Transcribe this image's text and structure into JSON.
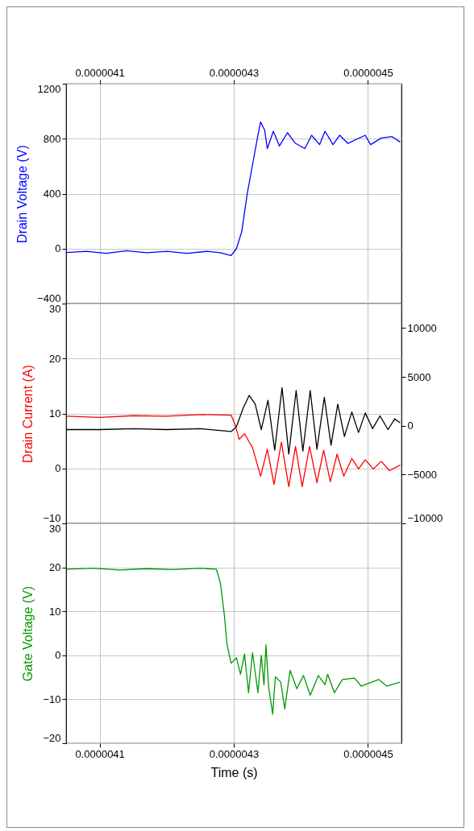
{
  "chart_data": [
    {
      "type": "line",
      "ylabel": "Drain Voltage (V)",
      "xlim": [
        4.05e-06,
        4.55e-06
      ],
      "xticks": [
        {
          "value": 4.1e-06,
          "label": null
        },
        {
          "value": 4.3e-06,
          "label": null
        },
        {
          "value": 4.5e-06,
          "label": null
        }
      ],
      "tick_labels": "y",
      "x2lim": [
        4.05e-06,
        4.55e-06
      ],
      "x2ticks": [
        {
          "value": 4.1e-06,
          "label": "0.0000041"
        },
        {
          "value": 4.3e-06,
          "label": "0.0000043"
        },
        {
          "value": 4.5e-06,
          "label": "0.0000045"
        }
      ],
      "ylim": [
        -400,
        1200
      ],
      "yticks": [
        -400,
        0,
        400,
        800,
        1200
      ],
      "grid": true,
      "series": [
        {
          "color": "#0000ff",
          "x": [
            4.0508e-06,
            4.08e-06,
            4.11e-06,
            4.14e-06,
            4.17e-06,
            4.2e-06,
            4.23e-06,
            4.26e-06,
            4.28e-06,
            4.296e-06,
            4.304e-06,
            4.312e-06,
            4.32e-06,
            4.328e-06,
            4.336e-06,
            4.34e-06,
            4.346e-06,
            4.35e-06,
            4.359e-06,
            4.368e-06,
            4.38e-06,
            4.392e-06,
            4.406e-06,
            4.416e-06,
            4.428e-06,
            4.436e-06,
            4.448e-06,
            4.458e-06,
            4.47e-06,
            4.496e-06,
            4.504e-06,
            4.52e-06,
            4.536e-06,
            4.548e-06
          ],
          "values": [
            -29,
            -20,
            -35,
            -15,
            -30,
            -20,
            -35,
            -20,
            -30,
            -50,
            0,
            126,
            398,
            611,
            825,
            922,
            863,
            728,
            854,
            747,
            844,
            766,
            728,
            825,
            757,
            854,
            757,
            825,
            766,
            825,
            757,
            805,
            815,
            776
          ]
        }
      ]
    },
    {
      "type": "line",
      "ylabel": "Drain Current (A)",
      "xlim": [
        4.05e-06,
        4.55e-06
      ],
      "xticks": [
        {
          "value": 4.1e-06,
          "label": null
        },
        {
          "value": 4.3e-06,
          "label": null
        },
        {
          "value": 4.5e-06,
          "label": null
        }
      ],
      "tick_labels": "y",
      "ylim": [
        -10,
        30
      ],
      "yticks": [
        -10,
        0,
        10,
        20,
        30
      ],
      "y2lim": [
        -10000,
        12500
      ],
      "y2ticks": [
        -10000,
        -5000,
        0,
        5000,
        10000
      ],
      "grid": true,
      "series": [
        {
          "color": "#ff0000",
          "x": [
            4.0508e-06,
            4.1e-06,
            4.15e-06,
            4.2e-06,
            4.25e-06,
            4.296e-06,
            4.302e-06,
            4.308e-06,
            4.316e-06,
            4.328e-06,
            4.34e-06,
            4.35e-06,
            4.36e-06,
            4.371e-06,
            4.382e-06,
            4.392e-06,
            4.402e-06,
            4.413e-06,
            4.424e-06,
            4.434e-06,
            4.444e-06,
            4.454e-06,
            4.464e-06,
            4.476e-06,
            4.486e-06,
            4.496e-06,
            4.508e-06,
            4.52e-06,
            4.532e-06,
            4.548e-06
          ],
          "values": [
            9.5,
            9.3,
            9.6,
            9.5,
            9.8,
            9.7,
            8.0,
            5.3,
            6.3,
            3.8,
            -1.4,
            3.5,
            -2.9,
            4.8,
            -3.3,
            4.0,
            -3.3,
            4.0,
            -2.6,
            3.3,
            -2.4,
            2.6,
            -1.4,
            1.8,
            -0.1,
            1.6,
            -0.1,
            1.3,
            -0.4,
            0.6
          ]
        },
        {
          "color": "#000000",
          "axis": "y2",
          "x": [
            4.0508e-06,
            4.1e-06,
            4.15e-06,
            4.2e-06,
            4.25e-06,
            4.296e-06,
            4.304e-06,
            4.314e-06,
            4.323e-06,
            4.332e-06,
            4.341e-06,
            4.351e-06,
            4.361e-06,
            4.372e-06,
            4.382e-06,
            4.393e-06,
            4.403e-06,
            4.414e-06,
            4.424e-06,
            4.435e-06,
            4.445e-06,
            4.455e-06,
            4.465e-06,
            4.476e-06,
            4.486e-06,
            4.496e-06,
            4.507e-06,
            4.518e-06,
            4.53e-06,
            4.54e-06,
            4.548e-06
          ],
          "values": [
            -400,
            -400,
            -300,
            -400,
            -300,
            -600,
            -100,
            1800,
            3100,
            2200,
            -400,
            2600,
            -2500,
            3900,
            -2900,
            3600,
            -2600,
            3600,
            -2400,
            2900,
            -2000,
            2200,
            -1100,
            1400,
            -700,
            1300,
            -300,
            1000,
            -400,
            700,
            300
          ]
        }
      ]
    },
    {
      "type": "line",
      "ylabel": "Gate Voltage (V)",
      "xlabel": "Time (s)",
      "xlim": [
        4.05e-06,
        4.55e-06
      ],
      "xticks": [
        {
          "value": 4.1e-06,
          "label": "0.0000041"
        },
        {
          "value": 4.3e-06,
          "label": "0.0000043"
        },
        {
          "value": 4.5e-06,
          "label": "0.0000045"
        }
      ],
      "ylim": [
        -20,
        30
      ],
      "yticks": [
        -20,
        -10,
        0,
        10,
        20,
        30
      ],
      "grid": true,
      "series": [
        {
          "color": "#009900",
          "x": [
            4.0508e-06,
            4.09e-06,
            4.13e-06,
            4.17e-06,
            4.21e-06,
            4.25e-06,
            4.274e-06,
            4.28e-06,
            4.286e-06,
            4.29e-06,
            4.296e-06,
            4.304e-06,
            4.31e-06,
            4.316e-06,
            4.322e-06,
            4.328e-06,
            4.336e-06,
            4.341e-06,
            4.345e-06,
            4.348e-06,
            4.352e-06,
            4.358e-06,
            4.362e-06,
            4.37e-06,
            4.376e-06,
            4.384e-06,
            4.394e-06,
            4.404e-06,
            4.414e-06,
            4.426e-06,
            4.436e-06,
            4.44e-06,
            4.45e-06,
            4.462e-06,
            4.48e-06,
            4.49e-06,
            4.516e-06,
            4.528e-06,
            4.548e-06
          ],
          "values": [
            19.6,
            19.8,
            19.4,
            19.7,
            19.5,
            19.8,
            19.6,
            16.5,
            9.1,
            2.4,
            -1.8,
            -0.6,
            -4.3,
            0.3,
            -8.5,
            0.6,
            -8.5,
            0,
            -6.7,
            2.4,
            -7.3,
            -13.4,
            -4.9,
            -6.1,
            -12.2,
            -3.4,
            -7.6,
            -4.6,
            -9.1,
            -4.6,
            -6.7,
            -4.3,
            -8.5,
            -5.5,
            -5.2,
            -7.0,
            -5.5,
            -7.0,
            -6.1
          ]
        }
      ]
    }
  ]
}
